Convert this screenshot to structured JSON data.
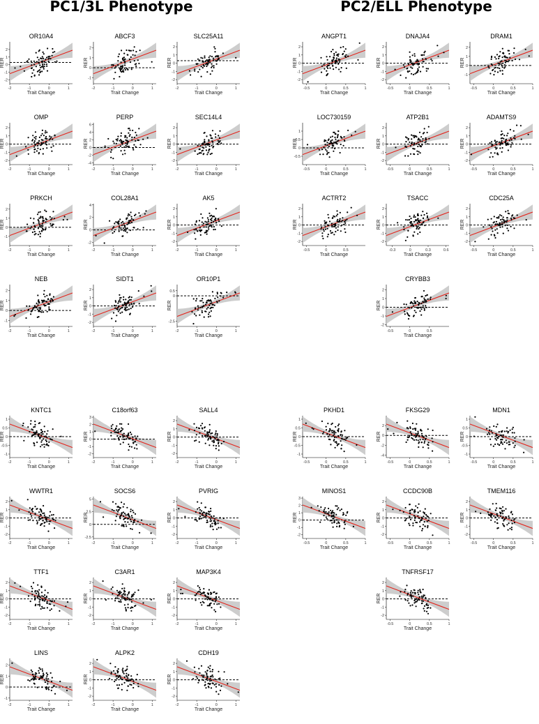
{
  "headers": {
    "left": "PC1/3L Phenotype",
    "right": "PC2/ELL Phenotype"
  },
  "axis_labels": {
    "x": "Trait Change",
    "y": "RER"
  },
  "colors": {
    "fit_line": "#e3241c",
    "band": "#c8c8c8",
    "points": "#000000",
    "reference": "#000000"
  },
  "chart_data": [
    {
      "type": "scatter",
      "title": "OR10A4",
      "xlabel": "Trait Change",
      "ylabel": "RER",
      "xlim": [
        -2,
        1.2
      ],
      "ylim": [
        -2.5,
        3
      ],
      "xticks": [
        -2,
        -1,
        0,
        1
      ],
      "yticks": [
        -2,
        -1,
        0,
        1,
        2
      ],
      "slope": 1,
      "ref": 0.3
    },
    {
      "type": "scatter",
      "title": "ABCF3",
      "xlabel": "Trait Change",
      "ylabel": "RER",
      "xlim": [
        -2,
        1.2
      ],
      "ylim": [
        -1.6,
        2.6
      ],
      "xticks": [
        -2,
        -1,
        0,
        1
      ],
      "yticks": [
        -1,
        0,
        1,
        2
      ],
      "slope": 1,
      "ref": 0
    },
    {
      "type": "scatter",
      "title": "SLC25A11",
      "xlabel": "Trait Change",
      "ylabel": "RER",
      "xlim": [
        -2,
        1.2
      ],
      "ylim": [
        -2.5,
        2.6
      ],
      "xticks": [
        -2,
        -1,
        0,
        1
      ],
      "yticks": [
        -2,
        -1,
        0,
        1,
        2
      ],
      "slope": 1,
      "ref": 0.3
    },
    {
      "type": "scatter",
      "title": "ANGPT1",
      "xlabel": "Trait Change",
      "ylabel": "RER",
      "xlim": [
        -0.6,
        1
      ],
      "ylim": [
        -2.5,
        2.6
      ],
      "xticks": [
        -0.5,
        0,
        0.5,
        1
      ],
      "yticks": [
        -2,
        -1,
        0,
        1,
        2
      ],
      "slope": 1,
      "ref": 0
    },
    {
      "type": "scatter",
      "title": "DNAJA4",
      "xlabel": "Trait Change",
      "ylabel": "RER",
      "xlim": [
        -0.6,
        1
      ],
      "ylim": [
        -2.5,
        2.6
      ],
      "xticks": [
        -0.5,
        0,
        0.5,
        1
      ],
      "yticks": [
        -2,
        -1,
        0,
        1,
        2
      ],
      "slope": 1,
      "ref": 0
    },
    {
      "type": "scatter",
      "title": "DRAM1",
      "xlabel": "Trait Change",
      "ylabel": "RER",
      "xlim": [
        -0.6,
        1
      ],
      "ylim": [
        -2,
        2.6
      ],
      "xticks": [
        -0.5,
        0,
        0.5,
        1
      ],
      "yticks": [
        -1,
        0,
        1,
        2
      ],
      "slope": 1,
      "ref": 0
    },
    {
      "type": "scatter",
      "title": "OMP",
      "xlabel": "Trait Change",
      "ylabel": "RER",
      "xlim": [
        -2,
        1.2
      ],
      "ylim": [
        -2.5,
        2.6
      ],
      "xticks": [
        -2,
        -1,
        0,
        1
      ],
      "yticks": [
        -2,
        -1,
        0,
        1,
        2
      ],
      "slope": 1,
      "ref": 0
    },
    {
      "type": "scatter",
      "title": "PERP",
      "xlabel": "Trait Change",
      "ylabel": "RER",
      "xlim": [
        -2,
        1.2
      ],
      "ylim": [
        -4.5,
        6.5
      ],
      "xticks": [
        -2,
        -1,
        0,
        1
      ],
      "yticks": [
        -4,
        -2,
        0,
        2,
        4,
        6
      ],
      "slope": 1,
      "ref": 0
    },
    {
      "type": "scatter",
      "title": "SEC14L4",
      "xlabel": "Trait Change",
      "ylabel": "RER",
      "xlim": [
        -2,
        1.2
      ],
      "ylim": [
        -2.5,
        2.6
      ],
      "xticks": [
        -2,
        -1,
        0,
        1
      ],
      "yticks": [
        -2,
        -1,
        0,
        1,
        2
      ],
      "slope": 1,
      "ref": 0
    },
    {
      "type": "scatter",
      "title": "LOC730159",
      "xlabel": "Trait Change",
      "ylabel": "RER",
      "xlim": [
        -0.6,
        1
      ],
      "ylim": [
        -1,
        1.5
      ],
      "xticks": [
        -0.5,
        0,
        0.5,
        1
      ],
      "yticks": [
        -0.5,
        0,
        0.5,
        1
      ],
      "slope": 1,
      "ref": 0
    },
    {
      "type": "scatter",
      "title": "ATP2B1",
      "xlabel": "Trait Change",
      "ylabel": "RER",
      "xlim": [
        -0.6,
        1
      ],
      "ylim": [
        -2.5,
        2.6
      ],
      "xticks": [
        -0.5,
        0,
        0.5,
        1
      ],
      "yticks": [
        -2,
        -1,
        0,
        1,
        2
      ],
      "slope": 1,
      "ref": 0
    },
    {
      "type": "scatter",
      "title": "ADAMTS9",
      "xlabel": "Trait Change",
      "ylabel": "RER",
      "xlim": [
        -0.6,
        1
      ],
      "ylim": [
        -2.5,
        2.6
      ],
      "xticks": [
        -0.5,
        0,
        0.5,
        1
      ],
      "yticks": [
        -2,
        -1,
        0,
        1,
        2
      ],
      "slope": 1,
      "ref": 0
    },
    {
      "type": "scatter",
      "title": "PRKCH",
      "xlabel": "Trait Change",
      "ylabel": "RER",
      "xlim": [
        -2,
        1.2
      ],
      "ylim": [
        -2,
        2.6
      ],
      "xticks": [
        -2,
        -1,
        0,
        1
      ],
      "yticks": [
        -1,
        0,
        1,
        2
      ],
      "slope": 1,
      "ref": 0
    },
    {
      "type": "scatter",
      "title": "COL28A1",
      "xlabel": "Trait Change",
      "ylabel": "RER",
      "xlim": [
        -2,
        1.2
      ],
      "ylim": [
        -2.5,
        4.2
      ],
      "xticks": [
        -2,
        -1,
        0,
        1
      ],
      "yticks": [
        -2,
        0,
        2,
        4
      ],
      "slope": 1,
      "ref": 0
    },
    {
      "type": "scatter",
      "title": "AK5",
      "xlabel": "Trait Change",
      "ylabel": "RER",
      "xlim": [
        -2,
        1.2
      ],
      "ylim": [
        -2.5,
        2.6
      ],
      "xticks": [
        -2,
        -1,
        0,
        1
      ],
      "yticks": [
        -2,
        -1,
        0,
        1,
        2
      ],
      "slope": 1,
      "ref": 0
    },
    {
      "type": "scatter",
      "title": "ACTRT2",
      "xlabel": "Trait Change",
      "ylabel": "RER",
      "xlim": [
        -0.6,
        1
      ],
      "ylim": [
        -2.5,
        2.6
      ],
      "xticks": [
        -0.5,
        0,
        0.5
      ],
      "yticks": [
        -2,
        -1,
        0,
        1,
        2
      ],
      "slope": 1,
      "ref": 0
    },
    {
      "type": "scatter",
      "title": "TSACC",
      "xlabel": "Trait Change",
      "ylabel": "RER",
      "xlim": [
        -0.4,
        0.65
      ],
      "ylim": [
        -2.5,
        2.6
      ],
      "xticks": [
        -0.3,
        0,
        0.3,
        0.6
      ],
      "yticks": [
        -2,
        -1,
        0,
        1,
        2
      ],
      "slope": 1,
      "ref": 0
    },
    {
      "type": "scatter",
      "title": "CDC25A",
      "xlabel": "Trait Change",
      "ylabel": "RER",
      "xlim": [
        -0.6,
        1
      ],
      "ylim": [
        -2.5,
        2.6
      ],
      "xticks": [
        -0.5,
        0,
        0.5,
        1
      ],
      "yticks": [
        -2,
        -1,
        0,
        1,
        2
      ],
      "slope": 1,
      "ref": 0
    },
    {
      "type": "scatter",
      "title": "NEB",
      "xlabel": "Trait Change",
      "ylabel": "RER",
      "xlim": [
        -2,
        1.2
      ],
      "ylim": [
        -1.6,
        2.6
      ],
      "xticks": [
        -2,
        -1,
        0,
        1
      ],
      "yticks": [
        -1,
        0,
        1,
        2
      ],
      "slope": 1,
      "ref": 0
    },
    {
      "type": "scatter",
      "title": "SIDT1",
      "xlabel": "Trait Change",
      "ylabel": "RER",
      "xlim": [
        -2,
        1.2
      ],
      "ylim": [
        -2.5,
        2.6
      ],
      "xticks": [
        -2,
        -1,
        0,
        1
      ],
      "yticks": [
        -2,
        -1,
        0,
        1,
        2
      ],
      "slope": 1,
      "ref": 0
    },
    {
      "type": "scatter",
      "title": "OR10P1",
      "xlabel": "Trait Change",
      "ylabel": "RER",
      "xlim": [
        -2,
        1.2
      ],
      "ylim": [
        -3,
        1.1
      ],
      "xticks": [
        -2,
        -1,
        0,
        1
      ],
      "yticks": [
        -2.5,
        0,
        0.5
      ],
      "slope": 1,
      "ref": 0
    },
    {
      "type": "scatter",
      "title": "CRYBB3",
      "xlabel": "Trait Change",
      "ylabel": "RER",
      "xlim": [
        -0.6,
        1
      ],
      "ylim": [
        -2.2,
        2.6
      ],
      "xticks": [
        -0.5,
        0,
        0.5
      ],
      "yticks": [
        -2,
        -1,
        0,
        1,
        2
      ],
      "slope": 1,
      "ref": 0
    },
    {
      "type": "scatter",
      "title": "KNTC1",
      "xlabel": "Trait Change",
      "ylabel": "RER",
      "xlim": [
        -2,
        1.2
      ],
      "ylim": [
        -1.2,
        1.2
      ],
      "xticks": [
        -2,
        -1,
        0,
        1
      ],
      "yticks": [
        -1,
        -0.5,
        0,
        0.5,
        1
      ],
      "slope": -1,
      "ref": 0
    },
    {
      "type": "scatter",
      "title": "C18orf63",
      "xlabel": "Trait Change",
      "ylabel": "RER",
      "xlim": [
        -2,
        1.2
      ],
      "ylim": [
        -2.5,
        3.2
      ],
      "xticks": [
        -2,
        -1,
        0,
        1
      ],
      "yticks": [
        -2,
        -1,
        0,
        1,
        2,
        3
      ],
      "slope": -1,
      "ref": 0
    },
    {
      "type": "scatter",
      "title": "SALL4",
      "xlabel": "Trait Change",
      "ylabel": "RER",
      "xlim": [
        -2,
        1.2
      ],
      "ylim": [
        -2.5,
        2.6
      ],
      "xticks": [
        -2,
        -1,
        0,
        1
      ],
      "yticks": [
        -2,
        -1,
        0,
        1,
        2
      ],
      "slope": -1,
      "ref": 0
    },
    {
      "type": "scatter",
      "title": "PKHD1",
      "xlabel": "Trait Change",
      "ylabel": "RER",
      "xlim": [
        -0.6,
        1
      ],
      "ylim": [
        -1.2,
        1.2
      ],
      "xticks": [
        -0.5,
        0,
        0.5,
        1
      ],
      "yticks": [
        -1,
        -0.5,
        0,
        0.5,
        1
      ],
      "slope": -1,
      "ref": 0
    },
    {
      "type": "scatter",
      "title": "FKSG29",
      "xlabel": "Trait Change",
      "ylabel": "RER",
      "xlim": [
        -0.6,
        1
      ],
      "ylim": [
        -4.5,
        4
      ],
      "xticks": [
        -0.5,
        0,
        0.5,
        1
      ],
      "yticks": [
        -4,
        -2,
        0,
        2
      ],
      "slope": -1,
      "ref": 0
    },
    {
      "type": "scatter",
      "title": "MDN1",
      "xlabel": "Trait Change",
      "ylabel": "RER",
      "xlim": [
        -0.6,
        1
      ],
      "ylim": [
        -1.2,
        1.2
      ],
      "xticks": [
        -0.5,
        0,
        0.5,
        1
      ],
      "yticks": [
        -1,
        -0.5,
        0,
        0.5,
        1
      ],
      "slope": -1,
      "ref": 0
    },
    {
      "type": "scatter",
      "title": "WWTR1",
      "xlabel": "Trait Change",
      "ylabel": "RER",
      "xlim": [
        -2,
        1.2
      ],
      "ylim": [
        -2.5,
        2.6
      ],
      "xticks": [
        -2,
        -1,
        0,
        1
      ],
      "yticks": [
        -2,
        -1,
        0,
        1,
        2
      ],
      "slope": -1,
      "ref": 0
    },
    {
      "type": "scatter",
      "title": "SOCS6",
      "xlabel": "Trait Change",
      "ylabel": "RER",
      "xlim": [
        -2,
        1.2
      ],
      "ylim": [
        -2.8,
        5.5
      ],
      "xticks": [
        -2,
        -1,
        0,
        1
      ],
      "yticks": [
        -2.5,
        0,
        2.5,
        5
      ],
      "slope": -1,
      "ref": 0
    },
    {
      "type": "scatter",
      "title": "PVRIG",
      "xlabel": "Trait Change",
      "ylabel": "RER",
      "xlim": [
        -2,
        1.2
      ],
      "ylim": [
        -2.5,
        2.6
      ],
      "xticks": [
        -2,
        -1,
        0,
        1
      ],
      "yticks": [
        -2,
        -1,
        0,
        1,
        2
      ],
      "slope": -1,
      "ref": 0
    },
    {
      "type": "scatter",
      "title": "MINOS1",
      "xlabel": "Trait Change",
      "ylabel": "RER",
      "xlim": [
        -0.6,
        1
      ],
      "ylim": [
        -2.5,
        3.2
      ],
      "xticks": [
        -0.5,
        0,
        0.5,
        1
      ],
      "yticks": [
        -2,
        -1,
        0,
        1,
        2,
        3
      ],
      "slope": -1,
      "ref": 0
    },
    {
      "type": "scatter",
      "title": "CCDC90B",
      "xlabel": "Trait Change",
      "ylabel": "RER",
      "xlim": [
        -0.6,
        1
      ],
      "ylim": [
        -2.5,
        2.6
      ],
      "xticks": [
        -0.5,
        0,
        0.5,
        1
      ],
      "yticks": [
        -2,
        -1,
        0,
        1,
        2
      ],
      "slope": -1,
      "ref": 0
    },
    {
      "type": "scatter",
      "title": "TMEM116",
      "xlabel": "Trait Change",
      "ylabel": "RER",
      "xlim": [
        -0.6,
        1
      ],
      "ylim": [
        -2.5,
        2.6
      ],
      "xticks": [
        -0.5,
        0,
        0.5,
        1
      ],
      "yticks": [
        -2,
        -1,
        0,
        1,
        2
      ],
      "slope": -1,
      "ref": 0
    },
    {
      "type": "scatter",
      "title": "TTF1",
      "xlabel": "Trait Change",
      "ylabel": "RER",
      "xlim": [
        -2,
        1.2
      ],
      "ylim": [
        -2.5,
        2.6
      ],
      "xticks": [
        -2,
        -1,
        0,
        1
      ],
      "yticks": [
        -2,
        -1,
        0,
        1,
        2
      ],
      "slope": -1,
      "ref": 0
    },
    {
      "type": "scatter",
      "title": "C3AR1",
      "xlabel": "Trait Change",
      "ylabel": "RER",
      "xlim": [
        -2,
        1.2
      ],
      "ylim": [
        -2.5,
        2.6
      ],
      "xticks": [
        -2,
        -1,
        0,
        1
      ],
      "yticks": [
        -2,
        -1,
        0,
        1,
        2
      ],
      "slope": -1,
      "ref": 0
    },
    {
      "type": "scatter",
      "title": "MAP3K4",
      "xlabel": "Trait Change",
      "ylabel": "RER",
      "xlim": [
        -2,
        1.2
      ],
      "ylim": [
        -2.5,
        2.6
      ],
      "xticks": [
        -2,
        -1,
        0,
        1
      ],
      "yticks": [
        -2,
        -1,
        0,
        1,
        2
      ],
      "slope": -1,
      "ref": 0
    },
    {
      "type": "scatter",
      "title": "TNFRSF17",
      "xlabel": "Trait Change",
      "ylabel": "RER",
      "xlim": [
        -0.6,
        1
      ],
      "ylim": [
        -2.5,
        2.6
      ],
      "xticks": [
        -0.5,
        0,
        0.5,
        1
      ],
      "yticks": [
        -2,
        -1,
        0,
        1,
        2
      ],
      "slope": -1,
      "ref": 0
    },
    {
      "type": "scatter",
      "title": "LINS",
      "xlabel": "Trait Change",
      "ylabel": "RER",
      "xlim": [
        -2,
        1.2
      ],
      "ylim": [
        -1.2,
        2.6
      ],
      "xticks": [
        -2,
        -1,
        0,
        1
      ],
      "yticks": [
        -1,
        0,
        1,
        2
      ],
      "slope": -1,
      "ref": 0
    },
    {
      "type": "scatter",
      "title": "ALPK2",
      "xlabel": "Trait Change",
      "ylabel": "RER",
      "xlim": [
        -2,
        1.2
      ],
      "ylim": [
        -2.5,
        2.6
      ],
      "xticks": [
        -2,
        -1,
        0,
        1
      ],
      "yticks": [
        -2,
        -1,
        0,
        1,
        2
      ],
      "slope": -1,
      "ref": 0
    },
    {
      "type": "scatter",
      "title": "CDH19",
      "xlabel": "Trait Change",
      "ylabel": "RER",
      "xlim": [
        -2,
        1.2
      ],
      "ylim": [
        -2.5,
        2.6
      ],
      "xticks": [
        -2,
        -1,
        0,
        1
      ],
      "yticks": [
        -2,
        -1,
        0,
        1,
        2
      ],
      "slope": -1,
      "ref": 0
    }
  ]
}
